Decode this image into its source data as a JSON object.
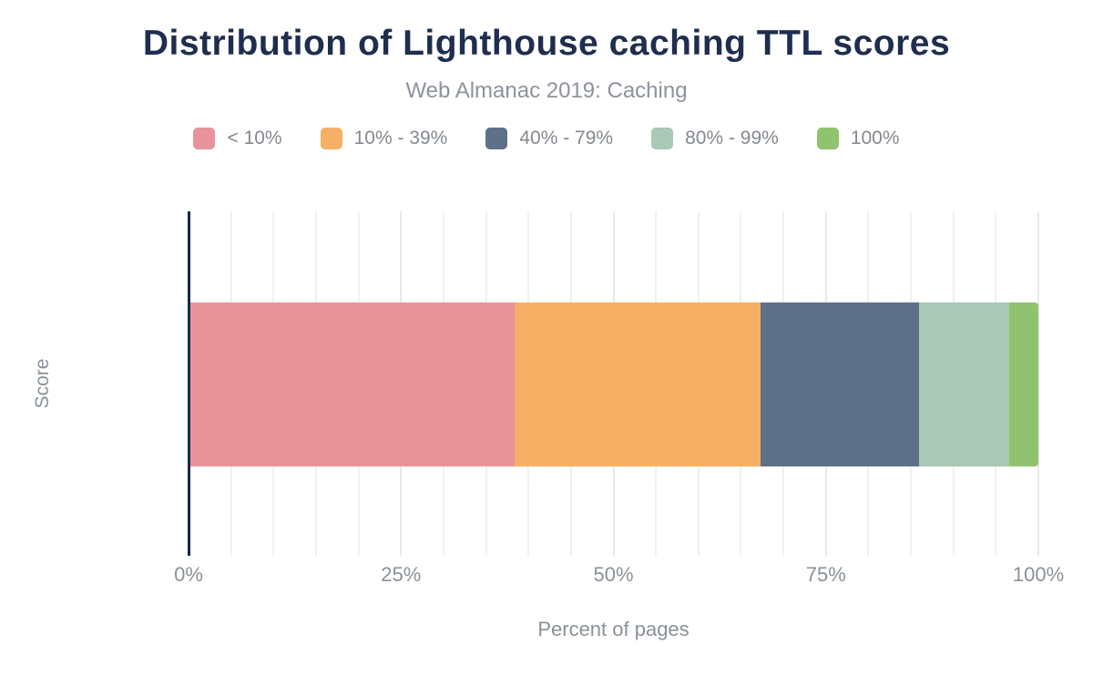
{
  "chart_data": {
    "type": "bar",
    "orientation": "horizontal",
    "stacked": true,
    "title": "Distribution of Lighthouse caching TTL scores",
    "subtitle": "Web Almanac 2019: Caching",
    "xlabel": "Percent of pages",
    "ylabel": "Score",
    "categories": [
      "Score"
    ],
    "series": [
      {
        "name": "< 10%",
        "color": "#e89399",
        "values": [
          38.2
        ]
      },
      {
        "name": "10% - 39%",
        "color": "#f6b065",
        "values": [
          29.0
        ]
      },
      {
        "name": "40% - 79%",
        "color": "#5f7189",
        "values": [
          18.7
        ]
      },
      {
        "name": "80% - 99%",
        "color": "#a9c8b5",
        "values": [
          10.7
        ]
      },
      {
        "name": "100%",
        "color": "#90c36e",
        "values": [
          3.4
        ]
      }
    ],
    "xlim": [
      0,
      100
    ],
    "x_ticks": [
      "0%",
      "25%",
      "50%",
      "75%",
      "100%"
    ],
    "grid": true,
    "grid_step_percent": 5,
    "legend_position": "top"
  },
  "colors": {
    "title": "#1f2e4e",
    "muted_text": "#8b9199",
    "axis_line": "#152a4e",
    "gridline": "#f0f0f0"
  }
}
